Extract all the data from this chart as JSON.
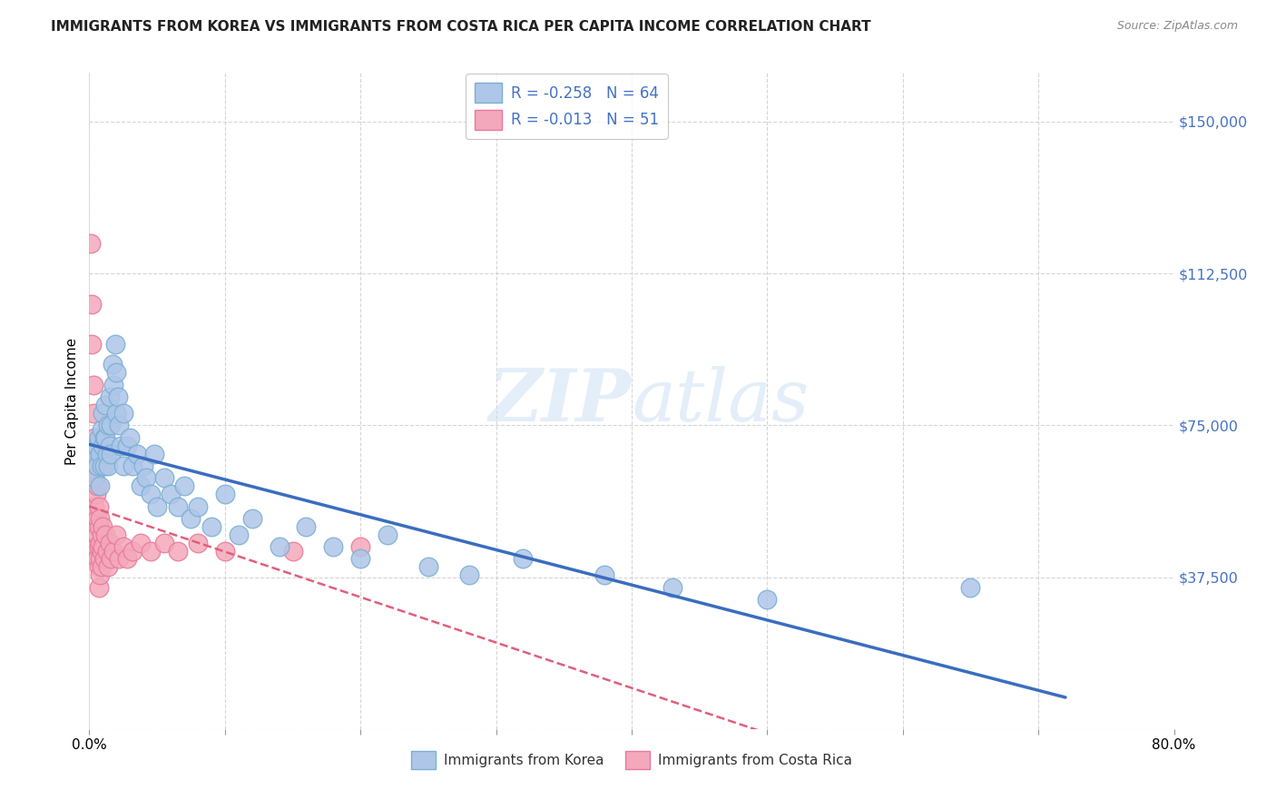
{
  "title": "IMMIGRANTS FROM KOREA VS IMMIGRANTS FROM COSTA RICA PER CAPITA INCOME CORRELATION CHART",
  "source": "Source: ZipAtlas.com",
  "ylabel": "Per Capita Income",
  "yticks": [
    0,
    37500,
    75000,
    112500,
    150000
  ],
  "ytick_labels": [
    "",
    "$37,500",
    "$75,000",
    "$112,500",
    "$150,000"
  ],
  "xlim": [
    0.0,
    0.8
  ],
  "ylim": [
    0,
    162000
  ],
  "korea_color": "#aec6e8",
  "costa_rica_color": "#f4a8bb",
  "korea_edge_color": "#7aafd4",
  "costa_rica_edge_color": "#e87a9a",
  "trend_korea_color": "#3a6dbf",
  "trend_costa_rica_color": "#e05f7a",
  "watermark": "ZIPatlas",
  "korea_R": "-0.258",
  "korea_N": "64",
  "costa_R": "-0.013",
  "costa_N": "51",
  "korea_label": "Immigrants from Korea",
  "costa_label": "Immigrants from Costa Rica",
  "korea_x": [
    0.003,
    0.004,
    0.005,
    0.006,
    0.007,
    0.008,
    0.008,
    0.009,
    0.009,
    0.01,
    0.01,
    0.011,
    0.011,
    0.012,
    0.012,
    0.013,
    0.014,
    0.014,
    0.015,
    0.015,
    0.016,
    0.016,
    0.017,
    0.018,
    0.019,
    0.02,
    0.02,
    0.021,
    0.022,
    0.023,
    0.025,
    0.025,
    0.028,
    0.03,
    0.032,
    0.035,
    0.038,
    0.04,
    0.042,
    0.045,
    0.048,
    0.05,
    0.055,
    0.06,
    0.065,
    0.07,
    0.075,
    0.08,
    0.09,
    0.1,
    0.11,
    0.12,
    0.14,
    0.16,
    0.18,
    0.2,
    0.22,
    0.25,
    0.28,
    0.32,
    0.38,
    0.43,
    0.5,
    0.65
  ],
  "korea_y": [
    68000,
    62000,
    70000,
    65000,
    72000,
    68000,
    60000,
    74000,
    65000,
    78000,
    70000,
    72000,
    65000,
    80000,
    72000,
    68000,
    75000,
    65000,
    82000,
    70000,
    75000,
    68000,
    90000,
    85000,
    95000,
    88000,
    78000,
    82000,
    75000,
    70000,
    78000,
    65000,
    70000,
    72000,
    65000,
    68000,
    60000,
    65000,
    62000,
    58000,
    68000,
    55000,
    62000,
    58000,
    55000,
    60000,
    52000,
    55000,
    50000,
    58000,
    48000,
    52000,
    45000,
    50000,
    45000,
    42000,
    48000,
    40000,
    38000,
    42000,
    38000,
    35000,
    32000,
    35000
  ],
  "costa_x": [
    0.001,
    0.002,
    0.002,
    0.003,
    0.003,
    0.003,
    0.004,
    0.004,
    0.004,
    0.005,
    0.005,
    0.005,
    0.005,
    0.006,
    0.006,
    0.006,
    0.006,
    0.007,
    0.007,
    0.007,
    0.007,
    0.007,
    0.008,
    0.008,
    0.008,
    0.008,
    0.009,
    0.009,
    0.009,
    0.01,
    0.01,
    0.011,
    0.012,
    0.013,
    0.014,
    0.015,
    0.016,
    0.018,
    0.02,
    0.022,
    0.025,
    0.028,
    0.032,
    0.038,
    0.045,
    0.055,
    0.065,
    0.08,
    0.1,
    0.15,
    0.2
  ],
  "costa_y": [
    120000,
    105000,
    95000,
    85000,
    78000,
    68000,
    72000,
    62000,
    55000,
    65000,
    58000,
    50000,
    45000,
    60000,
    52000,
    48000,
    42000,
    55000,
    50000,
    45000,
    40000,
    35000,
    52000,
    46000,
    42000,
    38000,
    48000,
    44000,
    40000,
    50000,
    45000,
    42000,
    48000,
    44000,
    40000,
    46000,
    42000,
    44000,
    48000,
    42000,
    45000,
    42000,
    44000,
    46000,
    44000,
    46000,
    44000,
    46000,
    44000,
    44000,
    45000
  ]
}
